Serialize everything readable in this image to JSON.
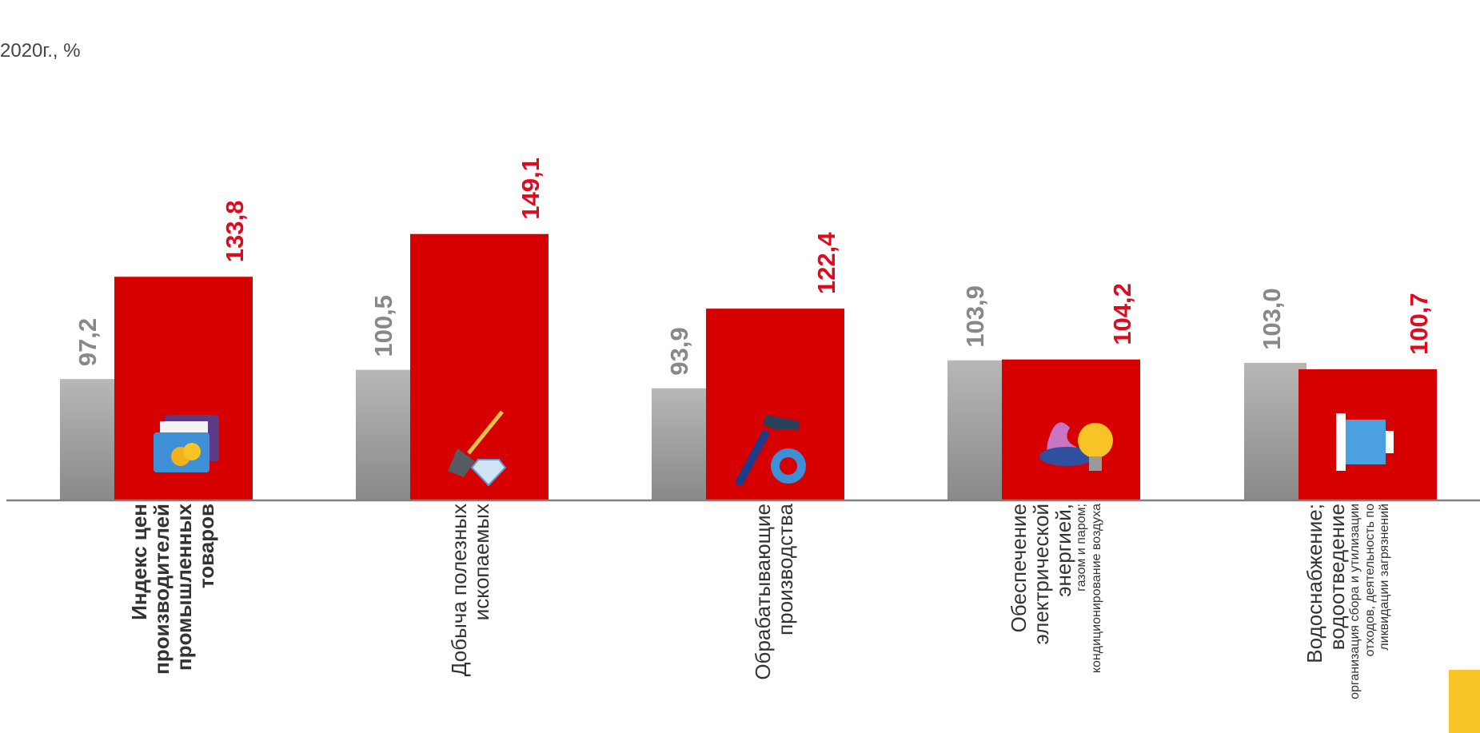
{
  "subtitle": "2020г., %",
  "colors": {
    "gray_bar_top": "#b8b7b6",
    "gray_bar_bottom": "#8a8888",
    "red_bar": "#d60000",
    "red_label": "#e00a1f",
    "gray_label": "#888888",
    "axis": "#808080",
    "badge": "#f7c325"
  },
  "chart_data": {
    "type": "bar",
    "ylim": [
      0,
      160
    ],
    "categories": [
      {
        "main": "Индекс цен производителей промышленных товаров",
        "sub": "",
        "bold": true,
        "icon": "folder-coins-icon"
      },
      {
        "main": "Добыча полезных ископаемых",
        "sub": "",
        "bold": false,
        "icon": "shovel-diamond-icon"
      },
      {
        "main": "Обрабатывающие производства",
        "sub": "",
        "bold": false,
        "icon": "hammer-gear-icon"
      },
      {
        "main": "Обеспечение электрической энергией,",
        "sub": "газом и паром; кондиционирование воздуха",
        "bold": false,
        "icon": "flame-bulb-icon"
      },
      {
        "main": "Водоснабжение; водоотведение",
        "sub": "организация сбора и утилизации отходов, деятельность по ликвидации загрязнений",
        "bold": false,
        "icon": "pipe-icon"
      }
    ],
    "series": [
      {
        "values": [
          97.2,
          100.5,
          93.9,
          103.9,
          103.0
        ],
        "labels": [
          "97,2",
          "100,5",
          "93,9",
          "103,9",
          "103,0"
        ]
      },
      {
        "values": [
          133.8,
          149.1,
          122.4,
          104.2,
          100.7
        ],
        "labels": [
          "133,8",
          "149,1",
          "122,4",
          "104,2",
          "100,7"
        ]
      }
    ]
  }
}
